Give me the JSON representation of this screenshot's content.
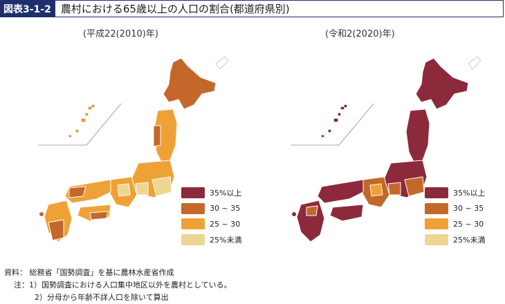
{
  "header": {
    "figure_number": "図表3-1-2",
    "title": "農村における65歳以上の人口の割合(都道府県別)"
  },
  "maps": [
    {
      "label": "(平成22(2010)年)"
    },
    {
      "label": "(令和2(2020)年)"
    }
  ],
  "legend": {
    "items": [
      {
        "label": "35%以上",
        "color": "#8c2a3c"
      },
      {
        "label": "30 ~ 35",
        "color": "#c4672a"
      },
      {
        "label": "25 ~ 30",
        "color": "#eea236"
      },
      {
        "label": "25%未満",
        "color": "#eed592"
      }
    ]
  },
  "notes": {
    "source": "資料： 総務省「国勢調査」を基に農林水産省作成",
    "note1": "注：1）国勢調査における人口集中地区以外を農村としている。",
    "note2": "2）分母から年齢不詳人口を除いて算出"
  },
  "colors": {
    "accent": "#1e2f6e"
  }
}
